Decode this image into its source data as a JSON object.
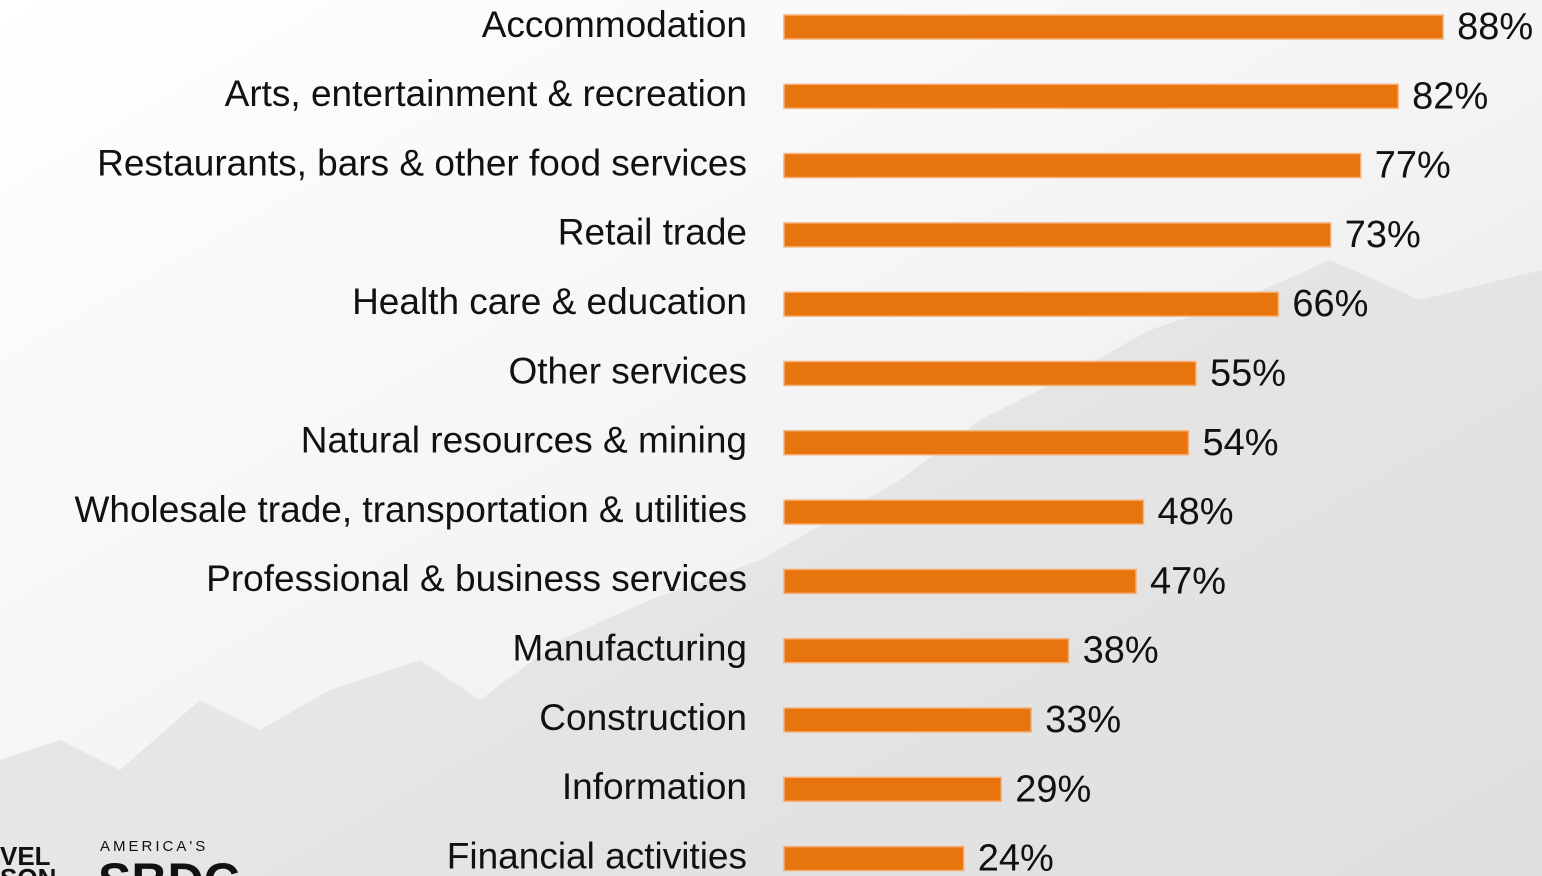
{
  "chart_data": {
    "type": "hbar",
    "categories": [
      "Accommodation",
      "Arts, entertainment & recreation",
      "Restaurants, bars & other food services",
      "Retail trade",
      "Health care & education",
      "Other services",
      "Natural resources & mining",
      "Wholesale trade, transportation & utilities",
      "Professional & business services",
      "Manufacturing",
      "Construction",
      "Information",
      "Financial activities"
    ],
    "values": [
      88,
      82,
      77,
      73,
      66,
      55,
      54,
      48,
      47,
      38,
      33,
      29,
      24
    ],
    "value_labels": [
      "88%",
      "82%",
      "77%",
      "73%",
      "66%",
      "55%",
      "54%",
      "48%",
      "47%",
      "38%",
      "33%",
      "29%",
      "24%"
    ],
    "color": "#e8740e",
    "xlim": [
      0,
      100
    ]
  },
  "logos": [
    "VEL",
    "SON",
    "AMERICA'S",
    "SBDC"
  ]
}
